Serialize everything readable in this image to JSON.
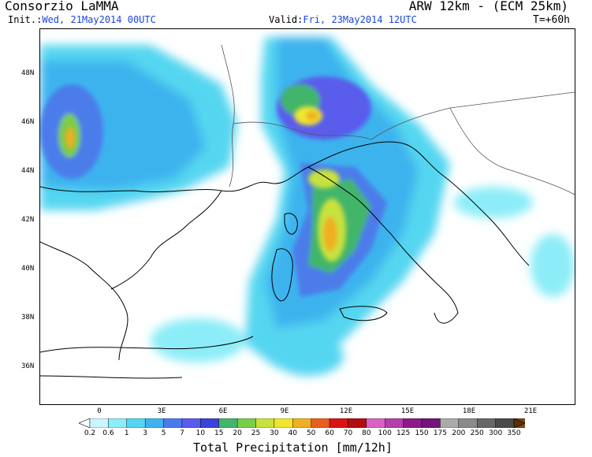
{
  "header": {
    "org": "Consorzio LaMMA",
    "model": "ARW 12km - (ECM 25km)",
    "init_label": "Init.:",
    "init_value": "Wed, 21May2014 00UTC",
    "valid_label": "Valid:",
    "valid_value": "Fri, 23May2014 12UTC",
    "lead_time": "T=+60h"
  },
  "map": {
    "lat_labels": [
      "48N",
      "46N",
      "44N",
      "42N",
      "40N",
      "38N",
      "36N"
    ],
    "lon_labels": [
      "0",
      "3E",
      "6E",
      "9E",
      "12E",
      "15E",
      "18E",
      "21E"
    ],
    "region": "Western Mediterranean / Italy"
  },
  "colorbar": {
    "title": "Total Precipitation [mm/12h]",
    "labels": [
      "0.2",
      "0.6",
      "1",
      "3",
      "5",
      "7",
      "10",
      "15",
      "20",
      "25",
      "30",
      "40",
      "50",
      "60",
      "70",
      "80",
      "100",
      "125",
      "150",
      "175",
      "200",
      "250",
      "300",
      "350"
    ],
    "colors": [
      "#c9f6fb",
      "#8cedf8",
      "#55d6f0",
      "#3eb3ee",
      "#4b7bea",
      "#5a5cec",
      "#3a44d9",
      "#43b56a",
      "#7acd4a",
      "#c7e23c",
      "#f1e62d",
      "#f0ae22",
      "#e85f1d",
      "#d91417",
      "#b20b10",
      "#d662c6",
      "#b43fac",
      "#8d1a8a",
      "#74137a",
      "#aaaaaa",
      "#8a8a8a",
      "#676767",
      "#4a4a4a",
      "#7a4a10",
      "#5a300a"
    ]
  }
}
